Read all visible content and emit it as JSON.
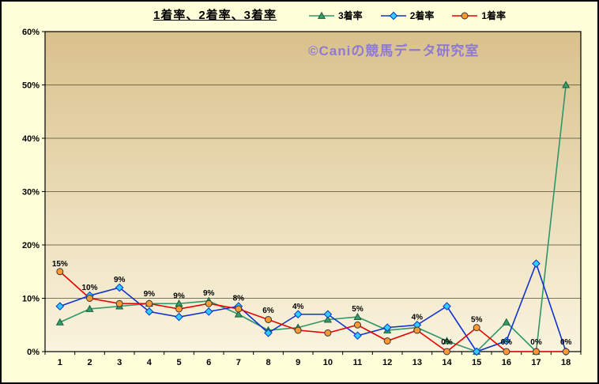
{
  "chart_data": {
    "type": "line",
    "title": "1着率、2着率、3着率",
    "watermark": "©Caniの競馬データ研究室",
    "categories": [
      "1",
      "2",
      "3",
      "4",
      "5",
      "6",
      "7",
      "8",
      "9",
      "10",
      "11",
      "12",
      "13",
      "14",
      "15",
      "16",
      "17",
      "18"
    ],
    "xlabel": "",
    "ylabel": "",
    "ylim": [
      0,
      60
    ],
    "ytick": 10,
    "ytick_suffix": "%",
    "grid": true,
    "legend_position": "top",
    "plot_bg_top": "#d9c18c",
    "plot_bg_bottom": "#faf4de",
    "series": [
      {
        "name": "3着率",
        "marker": "triangle",
        "color": "#2f966a",
        "fill": "#33a06c",
        "edge": "#1c5c38",
        "values": [
          5.5,
          8,
          8.5,
          9,
          9,
          9.5,
          7,
          4,
          4.5,
          6,
          6.5,
          4,
          4.5,
          2,
          0,
          5.5,
          0,
          50
        ]
      },
      {
        "name": "2着率",
        "marker": "diamond",
        "color": "#1133cc",
        "fill": "#33ccff",
        "edge": "#0033cc",
        "values": [
          8.5,
          10.5,
          12,
          7.5,
          6.5,
          7.5,
          8.5,
          3.5,
          7,
          7,
          3,
          4.5,
          5,
          8.5,
          0,
          2,
          16.5,
          0
        ]
      },
      {
        "name": "1着率",
        "marker": "circle",
        "color": "#e60000",
        "fill": "#ff9933",
        "edge": "#333333",
        "values": [
          15,
          10,
          9,
          9,
          8,
          9,
          8,
          6,
          4,
          3.5,
          5,
          2,
          4,
          0,
          4.5,
          0,
          0,
          0
        ]
      }
    ],
    "point_labels": [
      {
        "x": 1,
        "y": 15,
        "text": "15%"
      },
      {
        "x": 2,
        "y": 10.5,
        "text": "10%"
      },
      {
        "x": 3,
        "y": 12,
        "text": "9%"
      },
      {
        "x": 4,
        "y": 9.3,
        "text": "9%"
      },
      {
        "x": 5,
        "y": 9,
        "text": "9%"
      },
      {
        "x": 6,
        "y": 9.5,
        "text": "9%"
      },
      {
        "x": 7,
        "y": 8.5,
        "text": "8%"
      },
      {
        "x": 8,
        "y": 6.2,
        "text": "6%"
      },
      {
        "x": 9,
        "y": 7,
        "text": "4%"
      },
      {
        "x": 11,
        "y": 6.5,
        "text": "5%"
      },
      {
        "x": 13,
        "y": 5,
        "text": "4%"
      },
      {
        "x": 14,
        "y": 0.3,
        "text": "0%"
      },
      {
        "x": 15,
        "y": 4.5,
        "text": "5%"
      },
      {
        "x": 16,
        "y": 0.3,
        "text": "0%"
      },
      {
        "x": 17,
        "y": 0.3,
        "text": "0%"
      },
      {
        "x": 18,
        "y": 0.3,
        "text": "0%"
      }
    ]
  }
}
